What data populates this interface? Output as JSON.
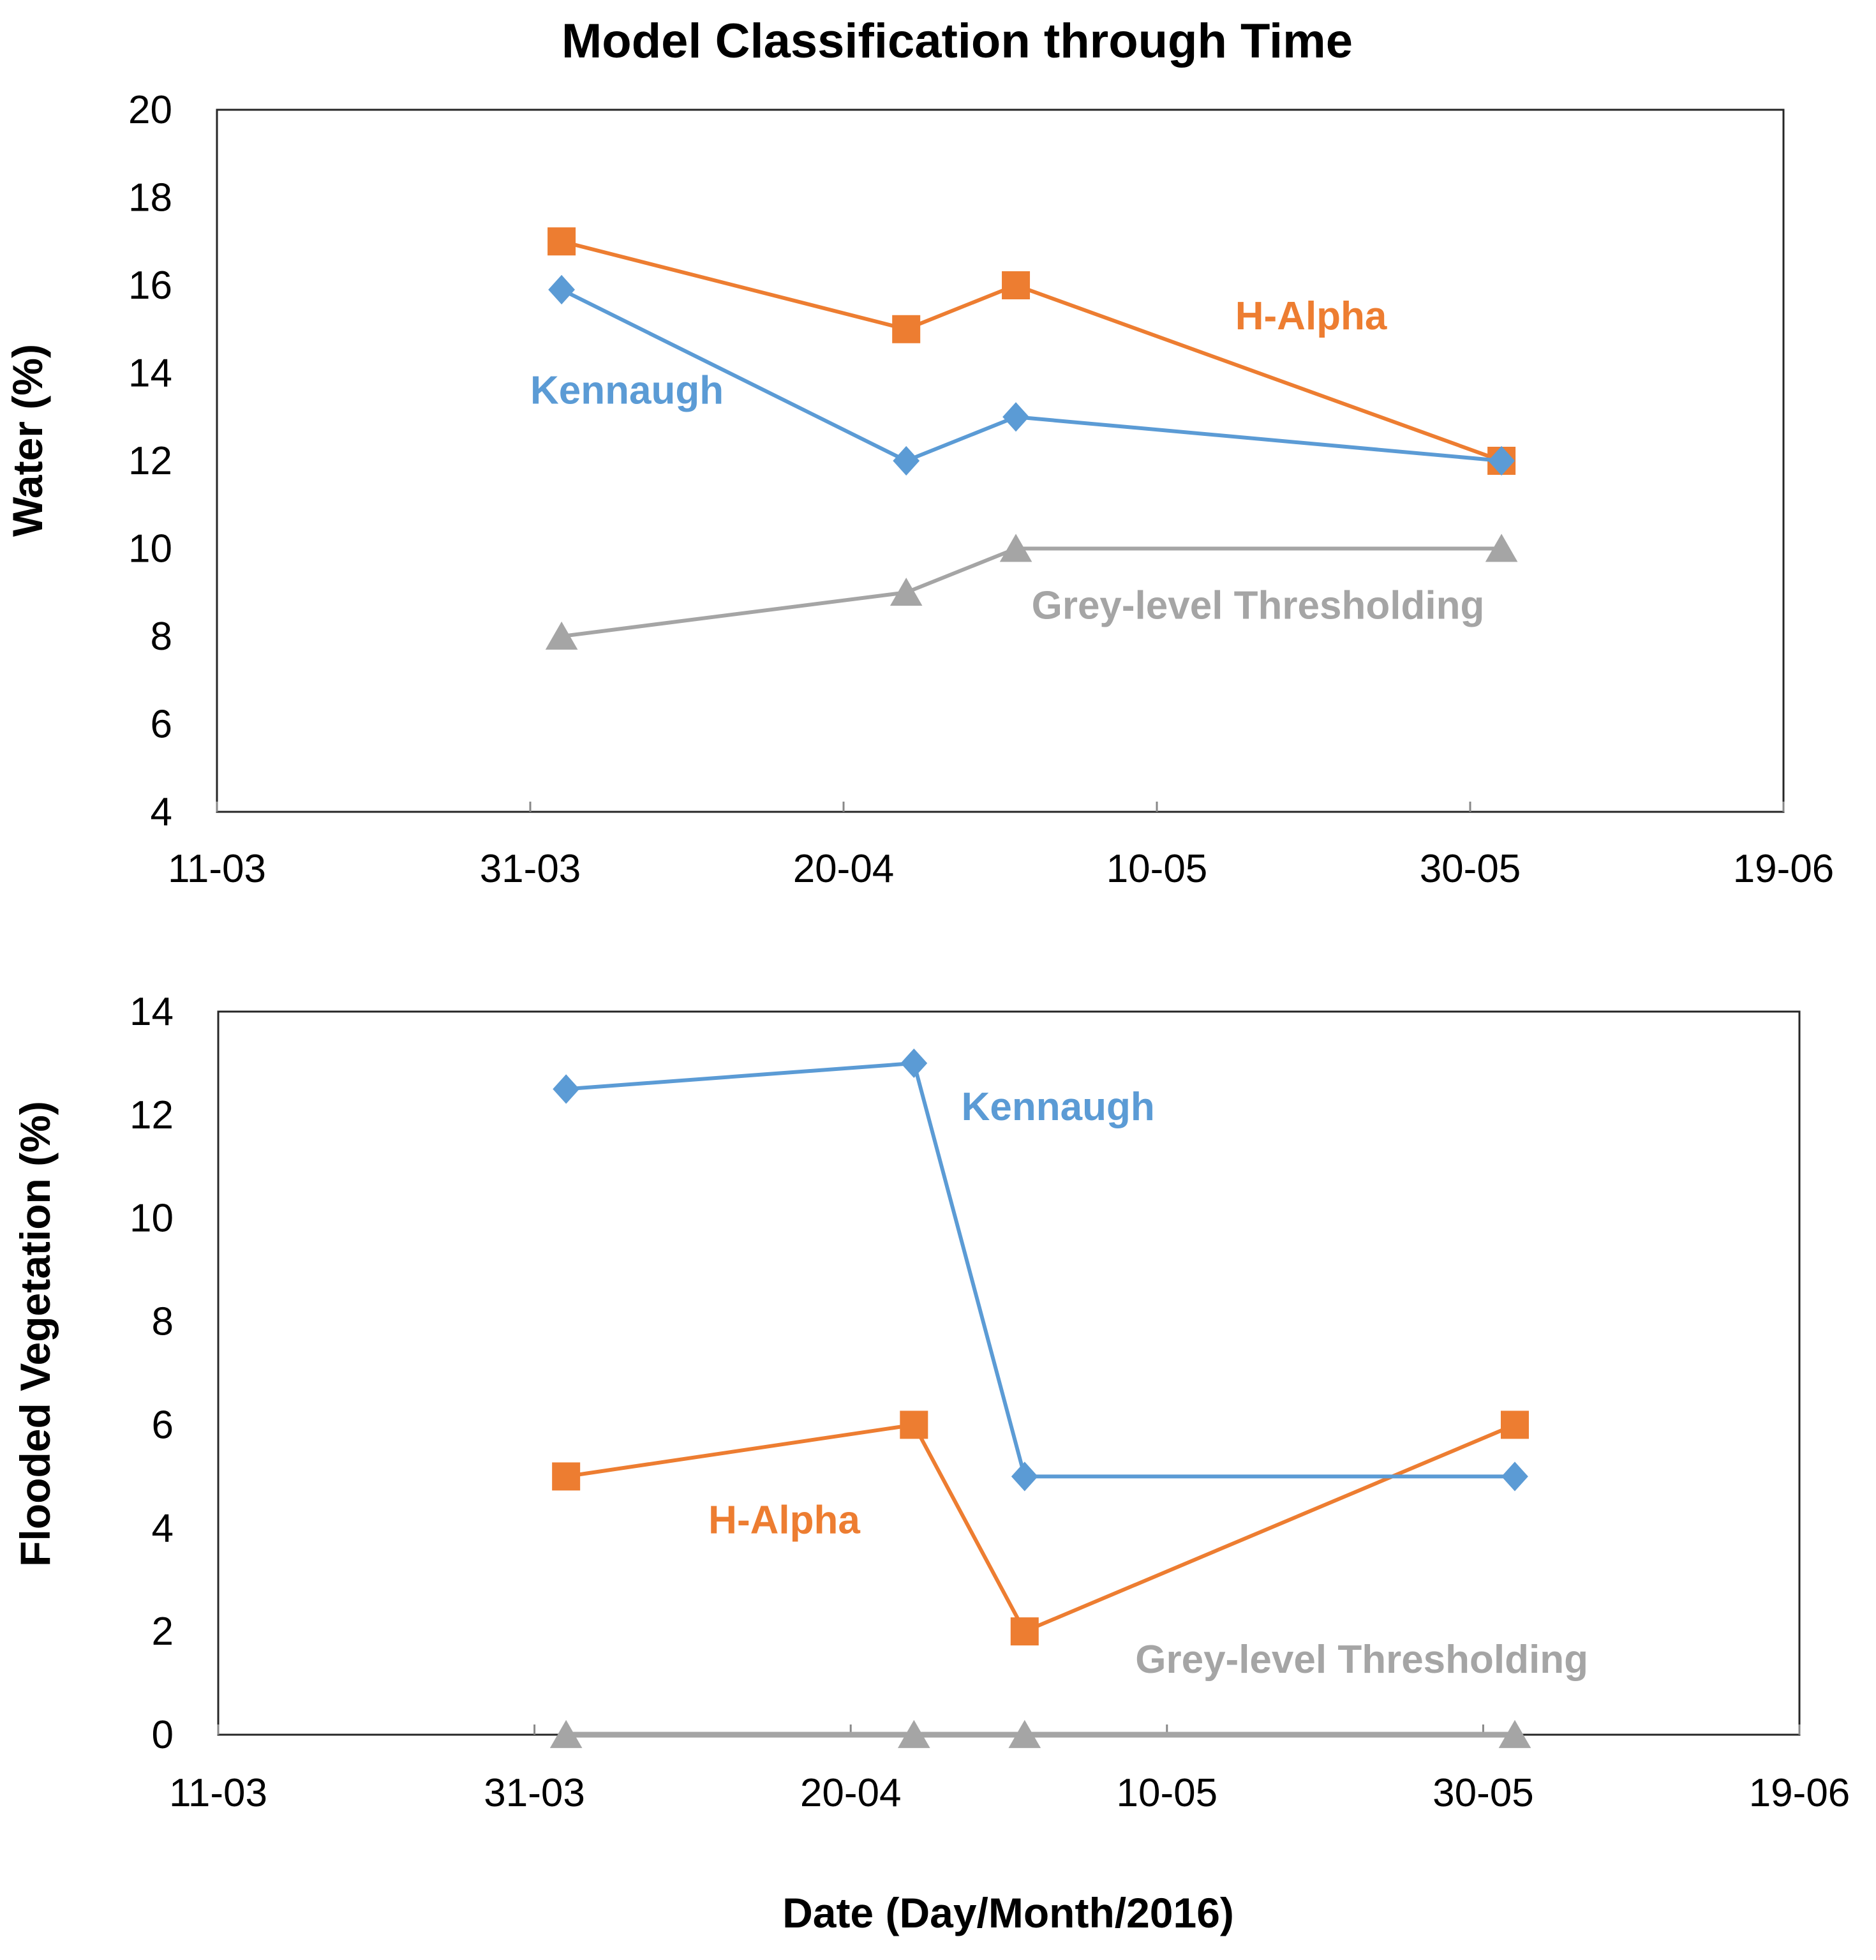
{
  "figure": {
    "title": "Model Classification through Time",
    "xlabel": "Date (Day/Month/2016)"
  },
  "colors": {
    "kennaugh": "#5B9BD5",
    "h_alpha": "#ED7D31",
    "grey": "#A5A5A5",
    "axis": "#262626",
    "tick_mark": "#888888",
    "text": "#000000"
  },
  "chart_data": [
    {
      "type": "line",
      "id": "water",
      "ylabel": "Water (%)",
      "ylim": [
        4,
        20
      ],
      "yticks": [
        "4",
        "6",
        "8",
        "10",
        "12",
        "14",
        "16",
        "18",
        "20"
      ],
      "xlim": [
        0,
        100
      ],
      "xticks": [
        {
          "x": 0,
          "label": "11-03"
        },
        {
          "x": 20,
          "label": "31-03"
        },
        {
          "x": 40,
          "label": "20-04"
        },
        {
          "x": 60,
          "label": "10-05"
        },
        {
          "x": 80,
          "label": "30-05"
        },
        {
          "x": 100,
          "label": "19-06"
        }
      ],
      "x_unit": "days since 11-03-2016",
      "series": [
        {
          "name": "Kennaugh",
          "color_key": "kennaugh",
          "marker": "diamond",
          "x": [
            22,
            44,
            51,
            82
          ],
          "values": [
            15.9,
            12,
            13,
            12
          ]
        },
        {
          "name": "H-Alpha",
          "color_key": "h_alpha",
          "marker": "square",
          "x": [
            22,
            44,
            51,
            82
          ],
          "values": [
            17,
            15,
            16,
            12
          ]
        },
        {
          "name": "Grey-level Thresholding",
          "color_key": "grey",
          "marker": "triangle",
          "x": [
            22,
            44,
            51,
            82
          ],
          "values": [
            8,
            9,
            10,
            10
          ]
        }
      ],
      "annotations": [
        {
          "text": "Kennaugh",
          "color_key": "kennaugh",
          "x": 20,
          "y": 13.3
        },
        {
          "text": "H-Alpha",
          "color_key": "h_alpha",
          "x": 65,
          "y": 15.0
        },
        {
          "text": "Grey-level Thresholding",
          "color_key": "grey",
          "x": 52,
          "y": 8.4
        }
      ]
    },
    {
      "type": "line",
      "id": "flooded_vegetation",
      "ylabel": "Flooded Vegetation (%)",
      "ylim": [
        0,
        14
      ],
      "yticks": [
        "0",
        "2",
        "4",
        "6",
        "8",
        "10",
        "12",
        "14"
      ],
      "xlim": [
        0,
        100
      ],
      "xticks": [
        {
          "x": 0,
          "label": "11-03"
        },
        {
          "x": 20,
          "label": "31-03"
        },
        {
          "x": 40,
          "label": "20-04"
        },
        {
          "x": 60,
          "label": "10-05"
        },
        {
          "x": 80,
          "label": "30-05"
        },
        {
          "x": 100,
          "label": "19-06"
        }
      ],
      "x_unit": "days since 11-03-2016",
      "series": [
        {
          "name": "Kennaugh",
          "color_key": "kennaugh",
          "marker": "diamond",
          "x": [
            22,
            44,
            51,
            82
          ],
          "values": [
            12.5,
            13,
            5,
            5
          ]
        },
        {
          "name": "H-Alpha",
          "color_key": "h_alpha",
          "marker": "square",
          "x": [
            22,
            44,
            51,
            82
          ],
          "values": [
            5,
            6,
            2,
            6
          ]
        },
        {
          "name": "Grey-level Thresholding",
          "color_key": "grey",
          "marker": "triangle",
          "x": [
            22,
            44,
            51,
            82
          ],
          "values": [
            0,
            0,
            0,
            0
          ]
        }
      ],
      "annotations": [
        {
          "text": "Kennaugh",
          "color_key": "kennaugh",
          "x": 47,
          "y": 11.9
        },
        {
          "text": "H-Alpha",
          "color_key": "h_alpha",
          "x": 31,
          "y": 3.9
        },
        {
          "text": "Grey-level Thresholding",
          "color_key": "grey",
          "x": 58,
          "y": 1.2
        }
      ]
    }
  ]
}
